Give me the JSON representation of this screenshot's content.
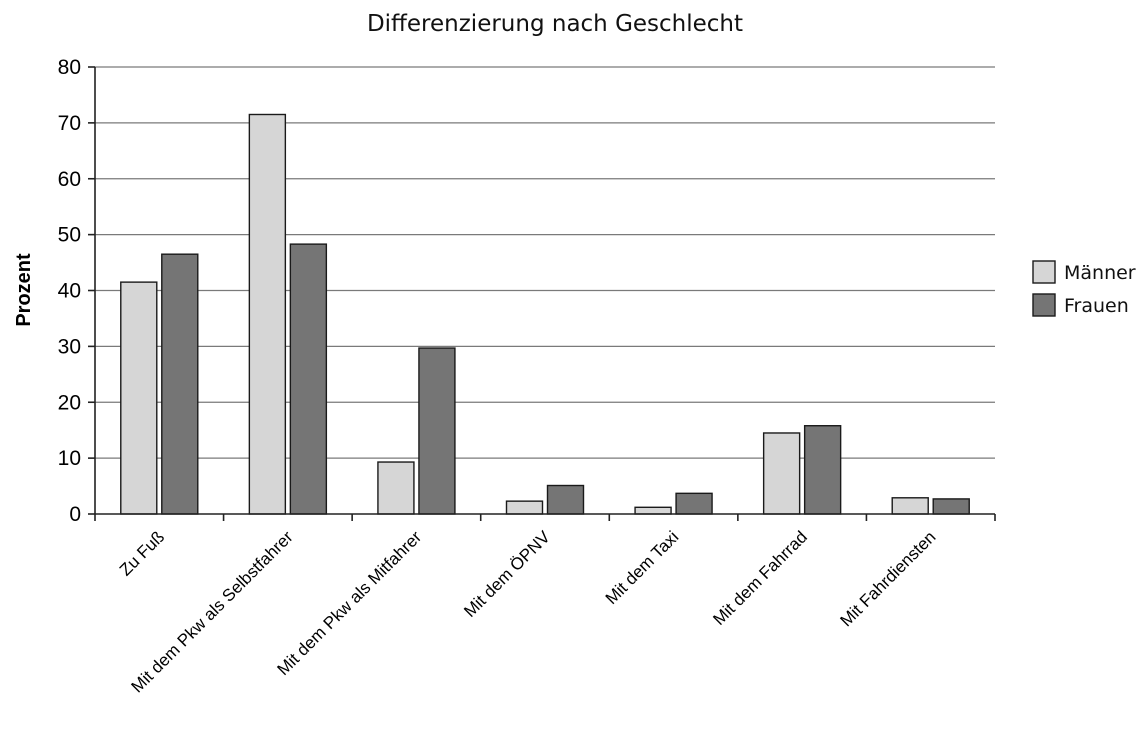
{
  "chart_data": {
    "type": "bar",
    "title": "Differenzierung nach Geschlecht",
    "xlabel": "",
    "ylabel": "Prozent",
    "ylim": [
      0,
      80
    ],
    "yticks": [
      0,
      10,
      20,
      30,
      40,
      50,
      60,
      70,
      80
    ],
    "grid": true,
    "legend_position": "right",
    "categories": [
      "Zu Fuß",
      "Mit dem Pkw als Selbstfahrer",
      "Mit dem Pkw als Mitfahrer",
      "Mit dem ÖPNV",
      "Mit dem Taxi",
      "Mit dem Fahrrad",
      "Mit Fahrdiensten"
    ],
    "series": [
      {
        "name": "Männer",
        "color": "#d6d6d6",
        "values": [
          41.5,
          71.5,
          9.3,
          2.3,
          1.2,
          14.5,
          2.9
        ]
      },
      {
        "name": "Frauen",
        "color": "#757575",
        "values": [
          46.5,
          48.3,
          29.7,
          5.1,
          3.7,
          15.8,
          2.7
        ]
      }
    ]
  }
}
